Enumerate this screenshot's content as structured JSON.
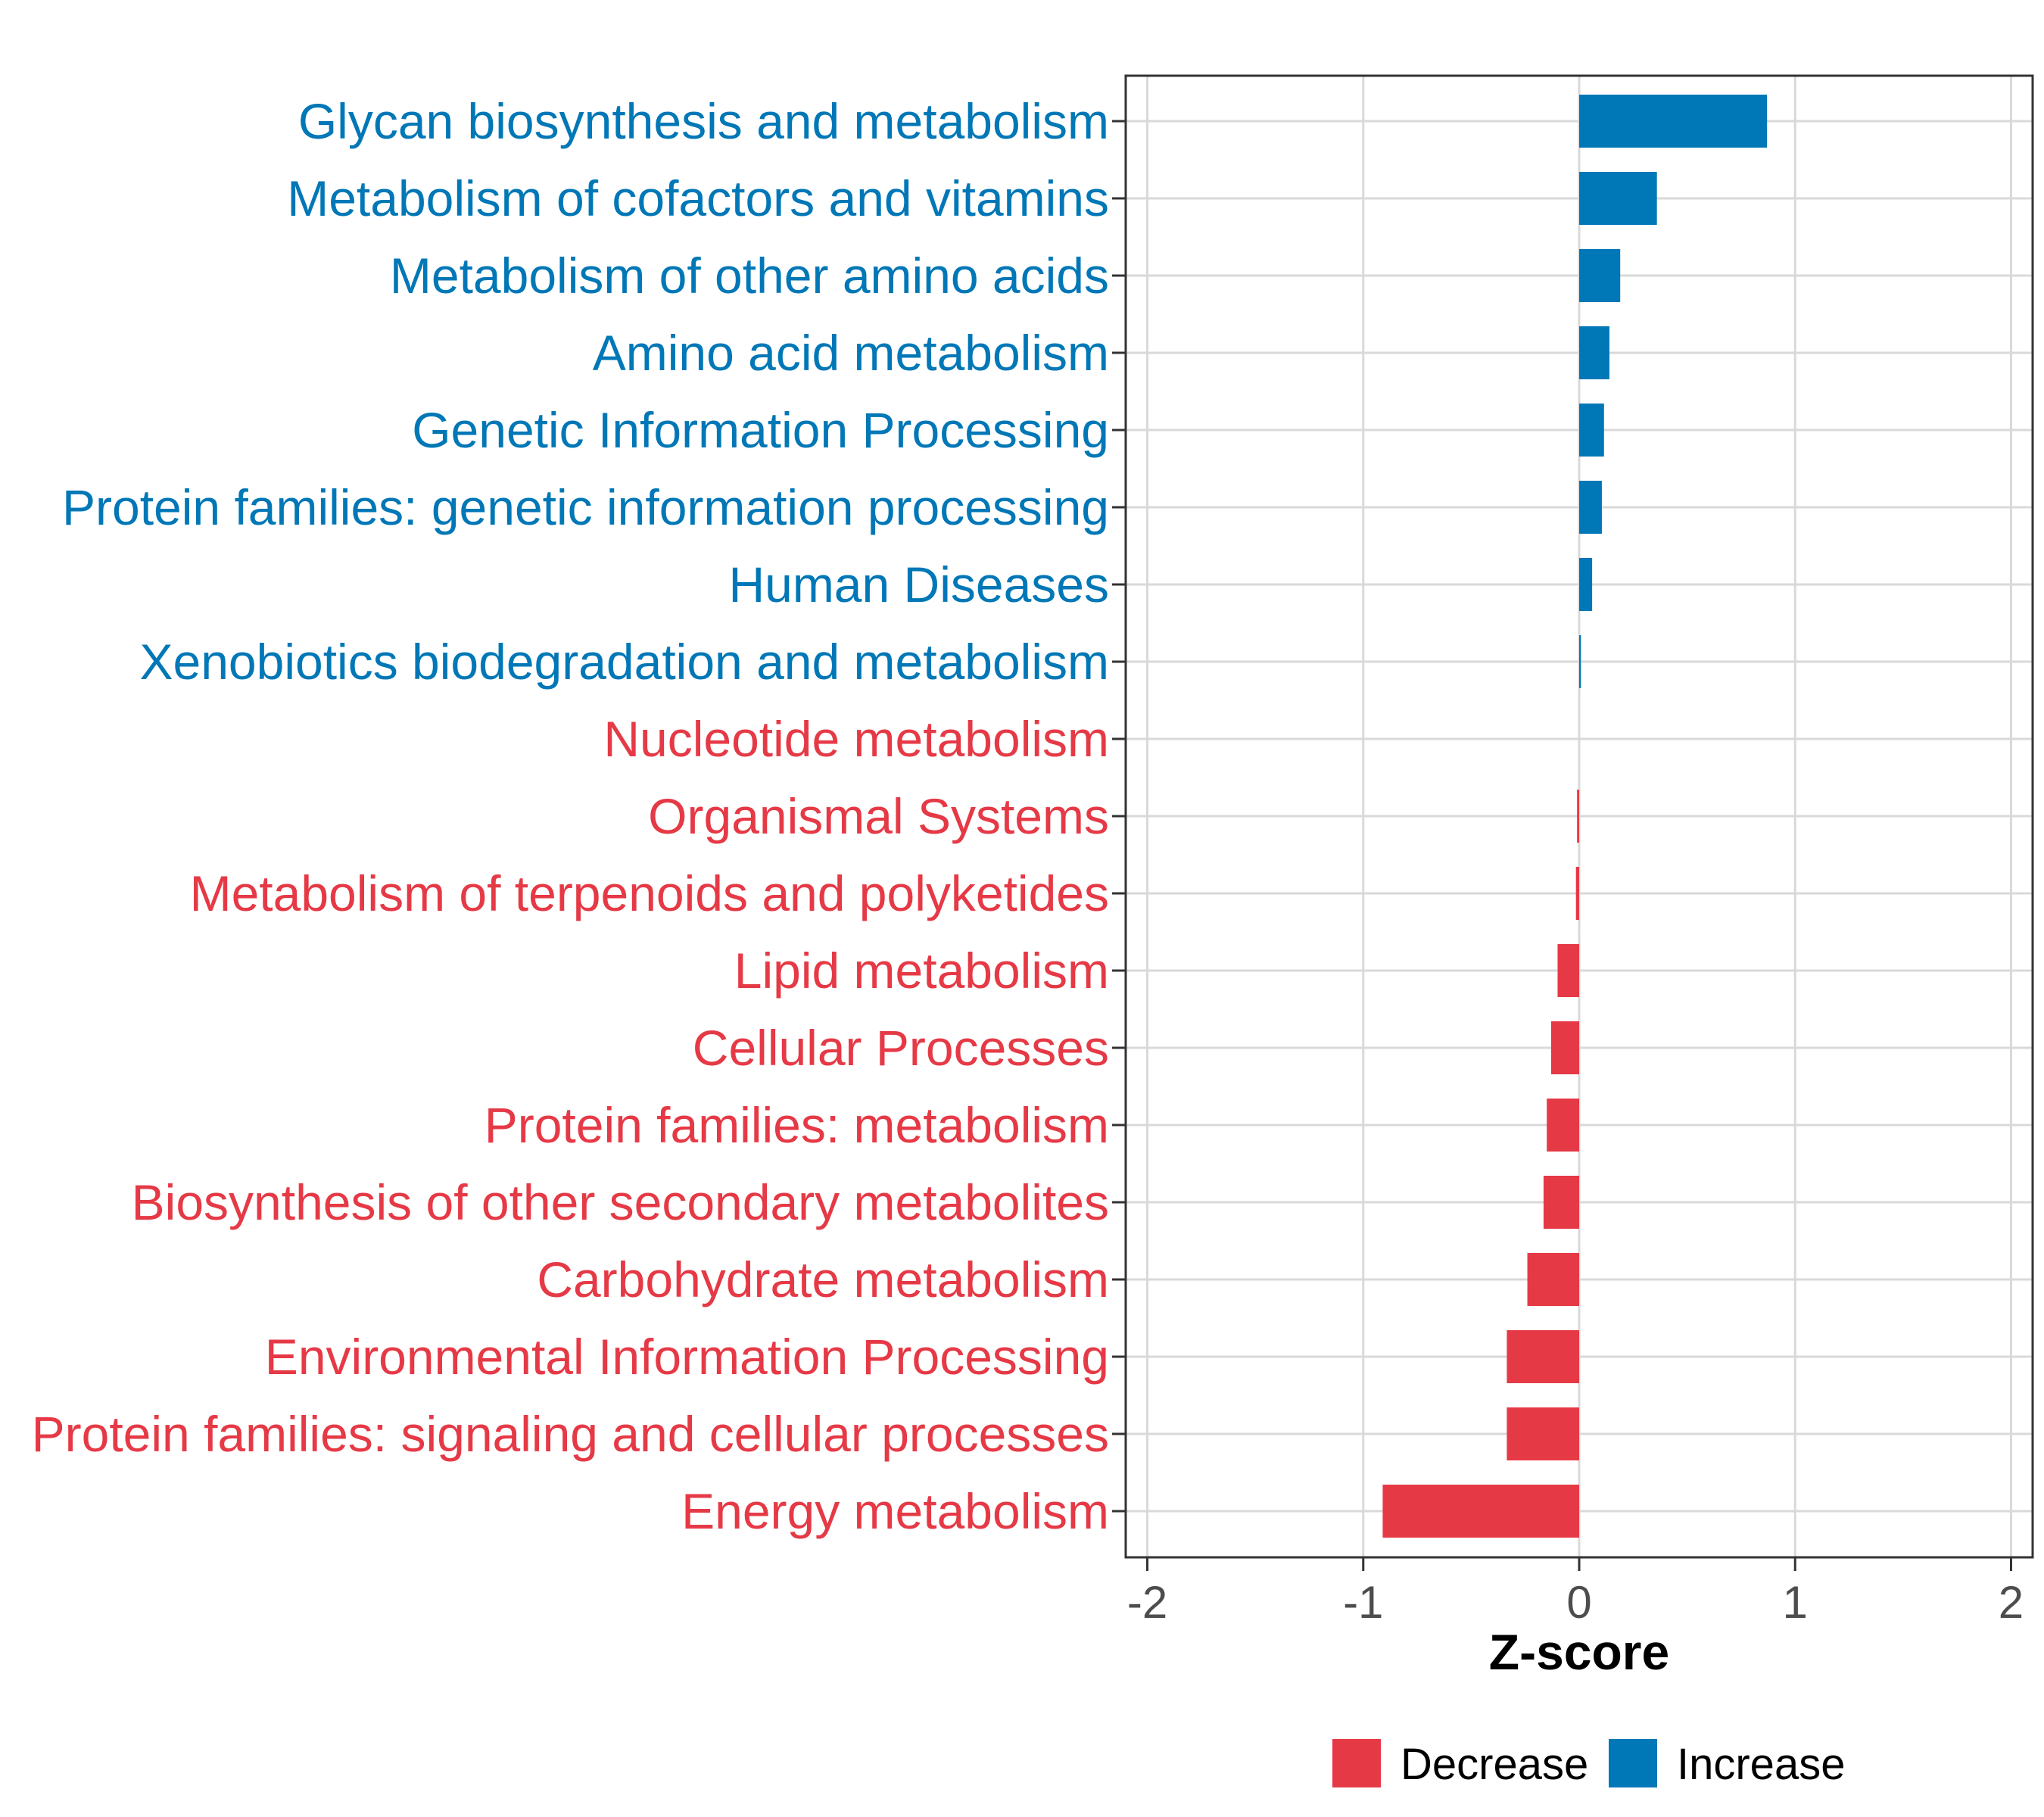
{
  "chart_data": {
    "type": "bar",
    "orientation": "horizontal",
    "xlabel": "Z-score",
    "ylabel": "",
    "xlim": [
      -2.1,
      2.1
    ],
    "x_ticks": [
      -2,
      -1,
      0,
      1,
      2
    ],
    "x_tick_labels": [
      "-2",
      "-1",
      "0",
      "1",
      "2"
    ],
    "grid": true,
    "legend_position": "bottom",
    "categories": [
      "Glycan biosynthesis and metabolism",
      "Metabolism of cofactors and vitamins",
      "Metabolism of other amino acids",
      "Amino acid metabolism",
      "Genetic Information Processing",
      "Protein families: genetic information processing",
      "Human Diseases",
      "Xenobiotics biodegradation and metabolism",
      "Nucleotide metabolism",
      "Organismal Systems",
      "Metabolism of terpenoids and polyketides",
      "Lipid metabolism",
      "Cellular Processes",
      "Protein families: metabolism",
      "Biosynthesis of other secondary metabolites",
      "Carbohydrate metabolism",
      "Environmental Information Processing",
      "Protein families: signaling and cellular processes",
      "Energy metabolism"
    ],
    "values": [
      0.87,
      0.36,
      0.19,
      0.14,
      0.115,
      0.105,
      0.06,
      0.008,
      0.0,
      -0.01,
      -0.015,
      -0.1,
      -0.13,
      -0.15,
      -0.165,
      -0.24,
      -0.335,
      -0.335,
      -0.91
    ],
    "groups": [
      "Increase",
      "Increase",
      "Increase",
      "Increase",
      "Increase",
      "Increase",
      "Increase",
      "Increase",
      "Decrease",
      "Decrease",
      "Decrease",
      "Decrease",
      "Decrease",
      "Decrease",
      "Decrease",
      "Decrease",
      "Decrease",
      "Decrease",
      "Decrease"
    ],
    "legend": [
      {
        "name": "Decrease",
        "color": "#e63946"
      },
      {
        "name": "Increase",
        "color": "#0077b6"
      }
    ],
    "colors": {
      "Decrease": "#e63946",
      "Increase": "#0077b6",
      "grid": "#d9d9d9",
      "panel_border": "#333333"
    }
  }
}
